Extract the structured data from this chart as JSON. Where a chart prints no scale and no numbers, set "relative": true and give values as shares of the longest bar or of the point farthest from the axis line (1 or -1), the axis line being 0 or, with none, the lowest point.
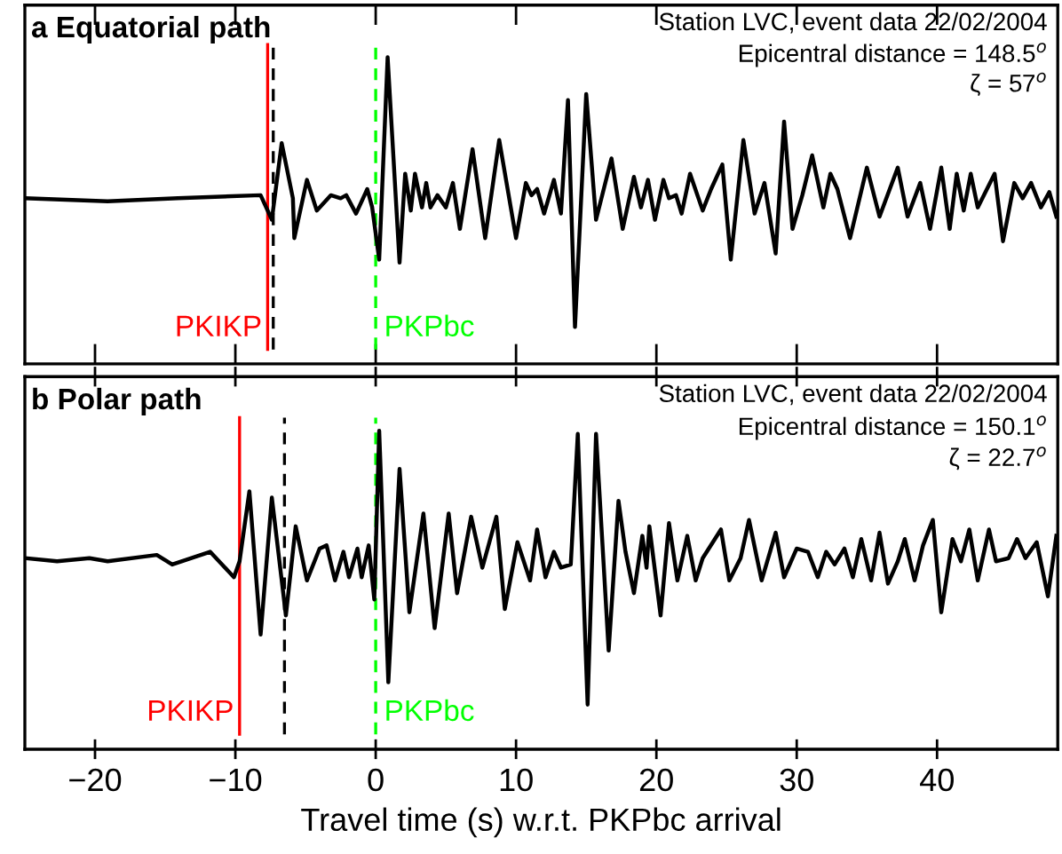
{
  "chart_data": [
    {
      "type": "line",
      "title": "a Equatorial path",
      "relative": true,
      "tick_labels": false,
      "grid": false,
      "legend": false,
      "annotations": [
        "Station LVC, event data 22/02/2004",
        "Epicentral distance = 148.5$^{o}$",
        "ζ = 57$^{o}$"
      ],
      "xlim": [
        -25,
        48.6
      ],
      "xticks": [
        -20,
        -10,
        0,
        10,
        20,
        30,
        40
      ],
      "ref_lines": [
        {
          "axis": "x",
          "value": -7.7,
          "label": "PKIKP",
          "color": "#ff0000",
          "line_style": "solid"
        },
        {
          "axis": "x",
          "value": -7.3,
          "label": null,
          "color": "#000000",
          "line_style": "dashed"
        },
        {
          "axis": "x",
          "value": 0,
          "label": "PKPbc",
          "color": "#00ff00",
          "line_style": "dashed"
        }
      ],
      "series": [
        {
          "color": "#000000",
          "x": [
            -25,
            -19.1,
            -14.1,
            -8.2,
            -7.4,
            -6.7,
            -5.9,
            -5.8,
            -4.9,
            -4.2,
            -3.2,
            -2.5,
            -2.1,
            -1.4,
            -0.6,
            -0.25,
            0.25,
            0.85,
            1.7,
            2.1,
            2.5,
            2.8,
            3.3,
            3.6,
            3.9,
            4.4,
            5.0,
            5.5,
            6.0,
            6.9,
            7.8,
            8.8,
            10.0,
            10.7,
            11.1,
            11.5,
            12.0,
            12.7,
            13.2,
            13.7,
            14.2,
            15.0,
            15.7,
            16.8,
            17.6,
            18.4,
            18.9,
            19.4,
            19.9,
            20.5,
            20.9,
            21.4,
            21.8,
            22.4,
            23.3,
            23.9,
            24.7,
            25.3,
            26.2,
            27.0,
            27.7,
            28.5,
            29.1,
            29.7,
            30.4,
            31.1,
            31.9,
            32.4,
            32.9,
            33.8,
            35.0,
            35.9,
            37.2,
            37.9,
            38.8,
            39.5,
            40.3,
            40.9,
            41.4,
            41.9,
            42.4,
            42.9,
            44.1,
            44.7,
            45.5,
            46.1,
            46.7,
            47.4,
            48.0,
            48.5
          ],
          "values": [
            0.54,
            0.53,
            0.54,
            0.55,
            0.47,
            0.72,
            0.54,
            0.41,
            0.6,
            0.5,
            0.55,
            0.54,
            0.55,
            0.49,
            0.57,
            0.51,
            0.34,
            1,
            0.33,
            0.62,
            0.5,
            0.62,
            0.51,
            0.59,
            0.51,
            0.55,
            0.51,
            0.59,
            0.44,
            0.7,
            0.41,
            0.73,
            0.41,
            0.59,
            0.55,
            0.57,
            0.49,
            0.6,
            0.49,
            0.86,
            0.12,
            0.88,
            0.47,
            0.67,
            0.44,
            0.61,
            0.51,
            0.6,
            0.47,
            0.6,
            0.54,
            0.55,
            0.49,
            0.62,
            0.5,
            0.57,
            0.65,
            0.34,
            0.73,
            0.49,
            0.59,
            0.36,
            0.79,
            0.44,
            0.55,
            0.68,
            0.51,
            0.62,
            0.57,
            0.41,
            0.64,
            0.48,
            0.64,
            0.48,
            0.59,
            0.44,
            0.64,
            0.44,
            0.62,
            0.5,
            0.62,
            0.51,
            0.62,
            0.4,
            0.59,
            0.54,
            0.59,
            0.51,
            0.56,
            0.48
          ]
        }
      ]
    },
    {
      "type": "line",
      "title": "b Polar path",
      "relative": true,
      "tick_labels": "x",
      "grid": false,
      "legend": false,
      "xlabel": "Travel time (s) w.r.t. PKPbc arrival",
      "annotations": [
        "Station LVC, event data 22/02/2004",
        "Epicentral distance = 150.1$^{o}$",
        "ζ = 22.7$^{o}$"
      ],
      "xlim": [
        -25,
        48.6
      ],
      "xticks": [
        {
          "value": -20,
          "label": "−20"
        },
        {
          "value": -10,
          "label": "−10"
        },
        0,
        10,
        20,
        30,
        40
      ],
      "ref_lines": [
        {
          "axis": "x",
          "value": -9.7,
          "label": "PKIKP",
          "color": "#ff0000",
          "line_style": "solid"
        },
        {
          "axis": "x",
          "value": -6.5,
          "label": null,
          "color": "#000000",
          "line_style": "dashed"
        },
        {
          "axis": "x",
          "value": 0,
          "label": "PKPbc",
          "color": "#00ff00",
          "line_style": "dashed"
        }
      ],
      "series": [
        {
          "color": "#000000",
          "x": [
            -25,
            -22.7,
            -20.4,
            -19.1,
            -15.6,
            -14.5,
            -11.8,
            -10.1,
            -9.7,
            -9.0,
            -8.2,
            -7.4,
            -6.4,
            -5.7,
            -4.9,
            -4.0,
            -3.5,
            -2.9,
            -2.3,
            -1.9,
            -1.3,
            -1.0,
            -0.5,
            -0.1,
            0.25,
            0.9,
            1.7,
            2.4,
            3.4,
            4.2,
            5.2,
            5.8,
            6.8,
            7.6,
            8.6,
            9.2,
            10.1,
            11.0,
            11.5,
            12.1,
            12.7,
            13.2,
            13.9,
            14.4,
            15.1,
            15.7,
            16.6,
            17.3,
            17.8,
            18.4,
            19.0,
            19.3,
            19.5,
            20.3,
            20.9,
            21.5,
            22.2,
            22.8,
            23.3,
            24.6,
            25.2,
            26.0,
            26.6,
            27.5,
            28.5,
            29.1,
            30.0,
            30.8,
            31.5,
            32.1,
            32.7,
            33.4,
            34.0,
            34.6,
            35.3,
            35.9,
            36.5,
            37.2,
            37.7,
            38.4,
            39.0,
            39.7,
            40.3,
            41.1,
            41.7,
            42.3,
            42.9,
            43.7,
            44.2,
            45.1,
            45.7,
            46.3,
            47.1,
            47.9,
            48.5
          ],
          "values": [
            0.6,
            0.59,
            0.6,
            0.59,
            0.61,
            0.58,
            0.62,
            0.54,
            0.59,
            0.81,
            0.36,
            0.79,
            0.42,
            0.7,
            0.53,
            0.63,
            0.64,
            0.53,
            0.62,
            0.54,
            0.63,
            0.54,
            0.64,
            0.47,
            1,
            0.21,
            0.88,
            0.43,
            0.74,
            0.38,
            0.74,
            0.49,
            0.73,
            0.57,
            0.73,
            0.44,
            0.65,
            0.53,
            0.69,
            0.54,
            0.62,
            0.57,
            0.58,
            0.99,
            0.14,
            0.99,
            0.31,
            0.78,
            0.62,
            0.49,
            0.67,
            0.57,
            0.7,
            0.42,
            0.71,
            0.53,
            0.67,
            0.53,
            0.6,
            0.69,
            0.53,
            0.6,
            0.72,
            0.53,
            0.68,
            0.54,
            0.63,
            0.62,
            0.54,
            0.62,
            0.58,
            0.63,
            0.54,
            0.66,
            0.53,
            0.68,
            0.52,
            0.59,
            0.66,
            0.53,
            0.64,
            0.72,
            0.43,
            0.66,
            0.59,
            0.69,
            0.53,
            0.69,
            0.59,
            0.6,
            0.66,
            0.6,
            0.65,
            0.48,
            0.67
          ]
        }
      ]
    }
  ]
}
